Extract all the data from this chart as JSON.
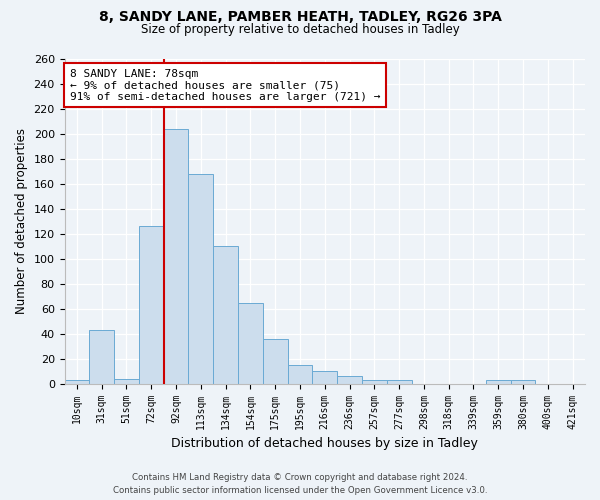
{
  "title1": "8, SANDY LANE, PAMBER HEATH, TADLEY, RG26 3PA",
  "title2": "Size of property relative to detached houses in Tadley",
  "xlabel": "Distribution of detached houses by size in Tadley",
  "ylabel": "Number of detached properties",
  "categories": [
    "10sqm",
    "31sqm",
    "51sqm",
    "72sqm",
    "92sqm",
    "113sqm",
    "134sqm",
    "154sqm",
    "175sqm",
    "195sqm",
    "216sqm",
    "236sqm",
    "257sqm",
    "277sqm",
    "298sqm",
    "318sqm",
    "339sqm",
    "359sqm",
    "380sqm",
    "400sqm",
    "421sqm"
  ],
  "values": [
    3,
    43,
    4,
    126,
    204,
    168,
    110,
    65,
    36,
    15,
    10,
    6,
    3,
    3,
    0,
    0,
    0,
    3,
    3,
    0,
    0
  ],
  "bar_color": "#ccdded",
  "bar_edge_color": "#6aaad4",
  "vline_x": 3.5,
  "vline_color": "#cc0000",
  "annotation_text": "8 SANDY LANE: 78sqm\n← 9% of detached houses are smaller (75)\n91% of semi-detached houses are larger (721) →",
  "annotation_box_color": "#ffffff",
  "annotation_box_edge": "#cc0000",
  "ylim": [
    0,
    260
  ],
  "yticks": [
    0,
    20,
    40,
    60,
    80,
    100,
    120,
    140,
    160,
    180,
    200,
    220,
    240,
    260
  ],
  "footer1": "Contains HM Land Registry data © Crown copyright and database right 2024.",
  "footer2": "Contains public sector information licensed under the Open Government Licence v3.0.",
  "bg_color": "#eef3f8"
}
